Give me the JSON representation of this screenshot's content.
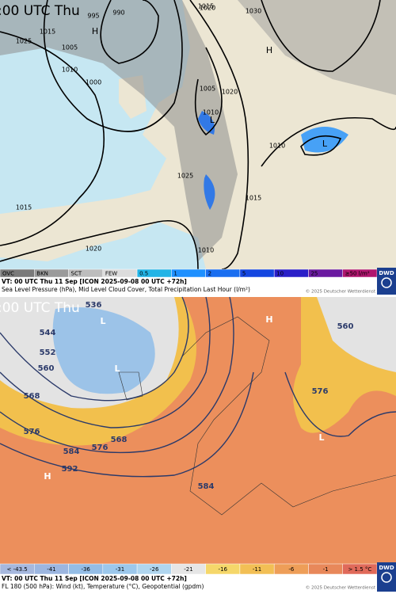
{
  "panels": [
    {
      "time_label": ":00 UTC Thu",
      "map_labels": [
        "995",
        "990",
        "1020",
        "1030",
        "1025",
        "1015",
        "1005",
        "1010",
        "1000",
        "1015",
        "1005",
        "1020",
        "1010",
        "1025",
        "1015",
        "1020",
        "1010",
        "1015",
        "1010",
        "H",
        "H",
        "L",
        "L"
      ],
      "legend": [
        {
          "label": "OVC",
          "color": "#7a7a7a"
        },
        {
          "label": "BKN",
          "color": "#9a9a9a"
        },
        {
          "label": "SCT",
          "color": "#bdbdbd"
        },
        {
          "label": "FEW",
          "color": "#dcdcdc"
        },
        {
          "label": "0.5",
          "color": "#22b4e6"
        },
        {
          "label": "1",
          "color": "#1e90ff"
        },
        {
          "label": "2",
          "color": "#1a6ef0"
        },
        {
          "label": "5",
          "color": "#1446e0"
        },
        {
          "label": "10",
          "color": "#2a1fc8"
        },
        {
          "label": "25",
          "color": "#6a1aa0"
        },
        {
          "label": "≥50 l/m²",
          "color": "#b0166e"
        }
      ],
      "logo": "DWD",
      "caption": [
        "VT: 00 UTC Thu  11 Sep [ICON 2025-09-08 00 UTC +72h]",
        "Sea Level Pressure (hPa), Mid Level Cloud Cover, Total Precipitation Last Hour (l/m²)"
      ],
      "copyright": "© 2025 Deutscher Wetterdienst"
    },
    {
      "time_label": ":00 UTC Thu",
      "map_labels": [
        "536",
        "544",
        "552",
        "560",
        "568",
        "576",
        "584",
        "592",
        "560",
        "576",
        "568",
        "576",
        "584",
        "L",
        "L",
        "L",
        "H",
        "H"
      ],
      "legend": [
        {
          "label": "< -43.5",
          "color": "#a6b8de"
        },
        {
          "label": "-41",
          "color": "#9cb6e0"
        },
        {
          "label": "-36",
          "color": "#94bde6"
        },
        {
          "label": "-31",
          "color": "#9cc8ec"
        },
        {
          "label": "-26",
          "color": "#b0d6ef"
        },
        {
          "label": "-21",
          "color": "#e6e6e6"
        },
        {
          "label": "-16",
          "color": "#f5d76a"
        },
        {
          "label": "-11",
          "color": "#f2bf55"
        },
        {
          "label": "-6",
          "color": "#ee9e58"
        },
        {
          "label": "-1",
          "color": "#e8885a"
        },
        {
          "label": "> 1.5 °C",
          "color": "#e06a5a"
        }
      ],
      "logo": "DWD",
      "caption": [
        "VT: 00 UTC Thu  11 Sep [ICON 2025-09-08 00 UTC +72h]",
        "FL 180 (500 hPa): Wind (kt), Temperature (°C), Geopotential (gpdm)"
      ],
      "copyright": "© 2025 Deutscher Wetterdienst"
    }
  ]
}
